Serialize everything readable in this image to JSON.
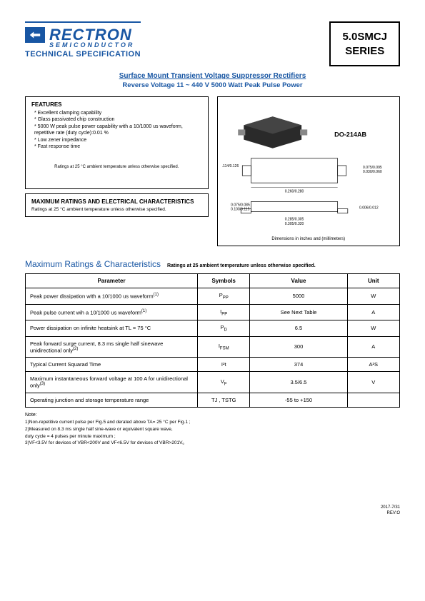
{
  "header": {
    "logo_main": "RECTRON",
    "logo_sub": "SEMICONDUCTOR",
    "tech_spec": "TECHNICAL SPECIFICATION",
    "series_line1": "5.0SMCJ",
    "series_line2": "SERIES"
  },
  "title": {
    "line1": "Surface Mount Transient Voltage Suppressor Rectifiers",
    "line2": "Reverse Voltage 11 ~ 440 V  5000 Watt Peak Pulse Power"
  },
  "features": {
    "heading": "FEATURES",
    "items": [
      "Excellent clamping capability",
      "Glass passivated chip construction",
      "5000 W peak pulse power capability with a 10/1000 us waveform, repetitive rate (duty cycle):0.01 %",
      "Low zener impedance",
      "Fast response time"
    ],
    "ratings_note": "Ratings at 25 °C ambient temperature unless otherwise specified."
  },
  "max_box": {
    "heading": "MAXIMUM RATINGS AND ELECTRICAL CHARACTERISTICS",
    "note": "Ratings at 25 °C ambient temperature unless otherwise specified."
  },
  "package": {
    "label": "DO-214AB",
    "caption": "Dimensions in inches and (millimeters)",
    "dims": {
      "body_w": "0.260/0.280",
      "body_h": "0.114/0.126",
      "lead_w": "0.030/0.060",
      "lead_h": "0.075/0.095",
      "total_w": "0.305/0.320",
      "foot_h": "0.006/0.012",
      "foot_w": "0.285/0.305",
      "pad1": "0.075/0.085",
      "pad2": "0.100/0.115"
    }
  },
  "ratings_section": {
    "title": "Maximum Ratings & Characteristics",
    "subtitle": "Ratings at 25   ambient temperature unless otherwise specified."
  },
  "table": {
    "headers": {
      "param": "Parameter",
      "symbol": "Symbols",
      "value": "Value",
      "unit": "Unit"
    },
    "rows": [
      {
        "param": "Peak power dissipation with a 10/1000 us waveform",
        "sup": "(1)",
        "symbol": "P",
        "sub": "PP",
        "value": "5000",
        "unit": "W"
      },
      {
        "param": "Peak pulse current wih a 10/1000 us waveform",
        "sup": "(1)",
        "symbol": "I",
        "sub": "PP",
        "value": "See Next Table",
        "unit": "A"
      },
      {
        "param": "Power dissipation on infinite heatsink at TL = 75 °C",
        "sup": "",
        "symbol": "P",
        "sub": "D",
        "value": "6.5",
        "unit": "W"
      },
      {
        "param": "Peak forward surge current, 8.3 ms single half sinewave unidirectional only",
        "sup": "(2)",
        "symbol": "I",
        "sub": "FSM",
        "value": "300",
        "unit": "A"
      },
      {
        "param": "Typical Current Squarad Time",
        "sup": "",
        "symbol": "I²t",
        "sub": "",
        "value": "374",
        "unit": "A²S"
      },
      {
        "param": "Maximum instantaneous forward voltage at 100 A for unidirectional only",
        "sup": "(3)",
        "symbol": "V",
        "sub": "F",
        "value": "3.5/6.5",
        "unit": "V"
      },
      {
        "param": "Operating junction and storage temperature range",
        "sup": "",
        "symbol": "TJ , TSTG",
        "sub": "",
        "value": "-55 to +150",
        "unit": ""
      }
    ]
  },
  "footnotes": {
    "head": "Note:",
    "items": [
      "1)Non-repetitive current pulse  per Fig.5 and derated above TA= 25 °C per Fig.1 ;",
      "2)Measured on 8.3 ms single half sine-wave or equivalent square wave,",
      "   duty cycle = 4 pulses per minute maximum ;",
      "3)VF<3.5V for devices of VBR<200V and VF<6.5V for devices of VBR>201V。"
    ]
  },
  "footer": {
    "date": "2017-7/31",
    "rev": "REV:O"
  },
  "colors": {
    "brand": "#1856a3",
    "border": "#000000",
    "bg": "#ffffff"
  }
}
